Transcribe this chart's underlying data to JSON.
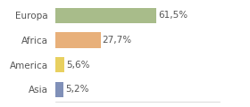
{
  "categories": [
    "Europa",
    "Africa",
    "America",
    "Asia"
  ],
  "values": [
    61.5,
    27.7,
    5.6,
    5.2
  ],
  "labels": [
    "61,5%",
    "27,7%",
    "5,6%",
    "5,2%"
  ],
  "bar_colors": [
    "#a8bc8a",
    "#e8b07a",
    "#e8d060",
    "#8090b8"
  ],
  "xlim": [
    0,
    100
  ],
  "background_color": "#ffffff",
  "text_color": "#555555",
  "fontsize": 7.5,
  "label_fontsize": 7.5,
  "bar_height": 0.62
}
